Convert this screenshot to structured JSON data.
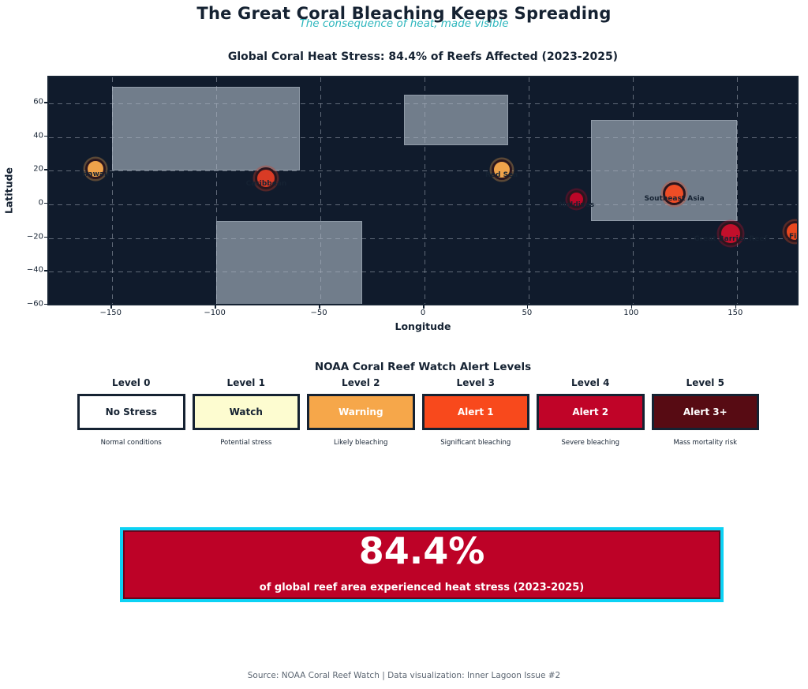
{
  "header": {
    "title": "The Great Coral Bleaching Keeps Spreading",
    "subtitle": "The consequence of heat, made visible"
  },
  "map": {
    "title": "Global Coral Heat Stress: 84.4% of Reefs Affected (2023-2025)",
    "xlabel": "Longitude",
    "ylabel": "Latitude",
    "bg_color": "#101b2c",
    "land_color": "#7a8594",
    "grid_color": "#afb7c4",
    "xlim": [
      -180.4,
      180.4
    ],
    "ylim": [
      -61.0,
      75.5
    ],
    "xticks": [
      {
        "v": -150,
        "label": "−150"
      },
      {
        "v": -100,
        "label": "−100"
      },
      {
        "v": -50,
        "label": "−50"
      },
      {
        "v": 0,
        "label": "0"
      },
      {
        "v": 50,
        "label": "50"
      },
      {
        "v": 100,
        "label": "100"
      },
      {
        "v": 150,
        "label": "150"
      }
    ],
    "yticks": [
      {
        "v": 60,
        "label": "60"
      },
      {
        "v": 40,
        "label": "40"
      },
      {
        "v": 20,
        "label": "20"
      },
      {
        "v": 0,
        "label": "0"
      },
      {
        "v": -20,
        "label": "−20"
      },
      {
        "v": -40,
        "label": "−40"
      },
      {
        "v": -60,
        "label": "−60"
      }
    ],
    "land_rects": [
      {
        "name": "north-america",
        "lon": [
          -150,
          -60
        ],
        "lat": [
          20,
          70
        ]
      },
      {
        "name": "south-america",
        "lon": [
          -100,
          -30
        ],
        "lat": [
          -60,
          -10
        ]
      },
      {
        "name": "europe",
        "lon": [
          -10,
          40
        ],
        "lat": [
          35,
          65
        ]
      },
      {
        "name": "asia-oceania",
        "lon": [
          80,
          150
        ],
        "lat": [
          -10,
          50
        ]
      }
    ],
    "markers": [
      {
        "name": "Hawaii",
        "lon": -158,
        "lat": 21,
        "color": "#efa24b",
        "size": 20,
        "alert": "Warning"
      },
      {
        "name": "Caribbean",
        "lon": -76,
        "lat": 15.5,
        "color": "#d93b25",
        "size": 22,
        "alert": "Alert 1"
      },
      {
        "name": "Red Sea",
        "lon": 37,
        "lat": 20.5,
        "color": "#efa24b",
        "size": 20,
        "alert": "Warning"
      },
      {
        "name": "Maldives",
        "lon": 73,
        "lat": 3,
        "color": "#bb0728",
        "size": 17,
        "alert": "Alert 2"
      },
      {
        "name": "Southeast Asia",
        "lon": 120,
        "lat": 6.5,
        "color": "#ee4d26",
        "size": 23,
        "alert": "Alert 1"
      },
      {
        "name": "Great Barrier Reef",
        "lon": 147,
        "lat": -17.5,
        "color": "#c30f2b",
        "size": 24,
        "alert": "Alert 2"
      },
      {
        "name": "Fiji",
        "lon": 178,
        "lat": -16,
        "color": "#e8481f",
        "size": 21,
        "alert": "Alert 1"
      }
    ]
  },
  "legend": {
    "title": "NOAA Coral Reef Watch Alert Levels",
    "levels": [
      {
        "level": "Level 0",
        "name": "No Stress",
        "desc": "Normal conditions",
        "fill": "#ffffff",
        "text": "#152232"
      },
      {
        "level": "Level 1",
        "name": "Watch",
        "desc": "Potential stress",
        "fill": "#fdfcd0",
        "text": "#152232"
      },
      {
        "level": "Level 2",
        "name": "Warning",
        "desc": "Likely bleaching",
        "fill": "#f6a74a",
        "text": "#ffffff"
      },
      {
        "level": "Level 3",
        "name": "Alert 1",
        "desc": "Significant bleaching",
        "fill": "#f8491c",
        "text": "#ffffff"
      },
      {
        "level": "Level 4",
        "name": "Alert 2",
        "desc": "Severe bleaching",
        "fill": "#c00428",
        "text": "#ffffff"
      },
      {
        "level": "Level 5",
        "name": "Alert 3+",
        "desc": "Mass mortality risk",
        "fill": "#570b13",
        "text": "#ffffff"
      }
    ]
  },
  "stat": {
    "value": "84.4%",
    "caption": "of global reef area experienced heat stress (2023-2025)",
    "fill": "#bd0227",
    "border": "#0cd2f4"
  },
  "footer": {
    "source": "Source: NOAA Coral Reef Watch | Data visualization: Inner Lagoon Issue #2"
  },
  "chart_data": {
    "type": "scatter",
    "title": "Global Coral Heat Stress: 84.4% of Reefs Affected (2023-2025)",
    "xlabel": "Longitude",
    "ylabel": "Latitude",
    "xlim": [
      -180,
      180
    ],
    "ylim": [
      -61,
      75
    ],
    "grid": true,
    "points": [
      {
        "region": "Hawaii",
        "lon": -158,
        "lat": 21,
        "alert_level": "Warning"
      },
      {
        "region": "Caribbean",
        "lon": -76,
        "lat": 15.5,
        "alert_level": "Alert 1"
      },
      {
        "region": "Red Sea",
        "lon": 37,
        "lat": 20.5,
        "alert_level": "Warning"
      },
      {
        "region": "Maldives",
        "lon": 73,
        "lat": 3,
        "alert_level": "Alert 2"
      },
      {
        "region": "Southeast Asia",
        "lon": 120,
        "lat": 6.5,
        "alert_level": "Alert 1"
      },
      {
        "region": "Great Barrier Reef",
        "lon": 147,
        "lat": -17.5,
        "alert_level": "Alert 2"
      },
      {
        "region": "Fiji",
        "lon": 178,
        "lat": -16,
        "alert_level": "Alert 1"
      }
    ],
    "land_boxes_lon_lat": [
      {
        "name": "north-america",
        "lon": [
          -150,
          -60
        ],
        "lat": [
          20,
          70
        ]
      },
      {
        "name": "south-america",
        "lon": [
          -100,
          -30
        ],
        "lat": [
          -60,
          -10
        ]
      },
      {
        "name": "europe",
        "lon": [
          -10,
          40
        ],
        "lat": [
          35,
          65
        ]
      },
      {
        "name": "asia-oceania",
        "lon": [
          80,
          150
        ],
        "lat": [
          -10,
          50
        ]
      }
    ],
    "headline_stat": {
      "value_pct": 84.4,
      "description": "of global reef area experienced heat stress (2023-2025)"
    }
  }
}
